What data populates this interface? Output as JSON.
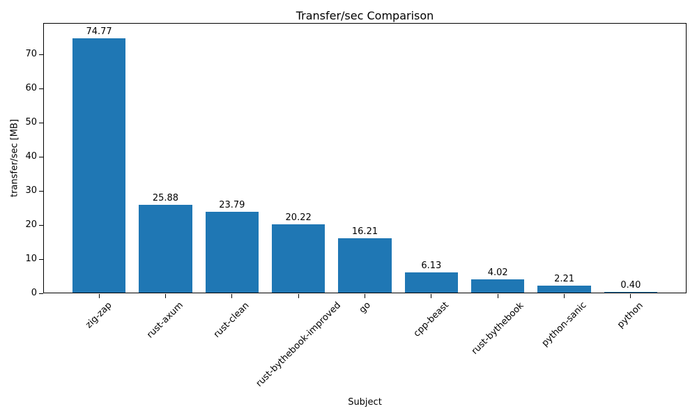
{
  "chart_data": {
    "type": "bar",
    "title": "Transfer/sec Comparison",
    "xlabel": "Subject",
    "ylabel": "transfer/sec [MB]",
    "categories": [
      "zig-zap",
      "rust-axum",
      "rust-clean",
      "rust-bythebook-improved",
      "go",
      "cpp-beast",
      "rust-bythebook",
      "python-sanic",
      "python"
    ],
    "values": [
      74.77,
      25.88,
      23.79,
      20.22,
      16.21,
      6.13,
      4.02,
      2.21,
      0.4
    ],
    "value_labels": [
      "74.77",
      "25.88",
      "23.79",
      "20.22",
      "16.21",
      "6.13",
      "4.02",
      "2.21",
      "0.40"
    ],
    "yticks": [
      0,
      10,
      20,
      30,
      40,
      50,
      60,
      70
    ],
    "ylim": [
      0,
      79.2
    ],
    "grid": false,
    "legend": "none",
    "colors": {
      "bar": "#1f77b4",
      "text": "#000000",
      "spine": "#000000",
      "background": "#ffffff"
    }
  }
}
